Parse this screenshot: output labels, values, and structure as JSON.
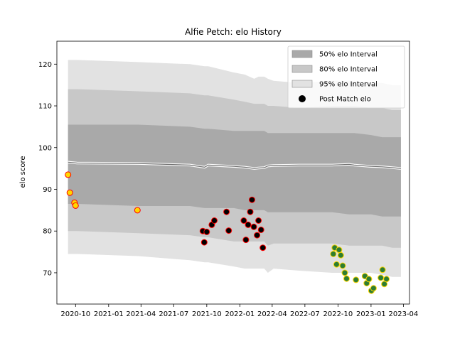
{
  "chart_data": {
    "type": "scatter",
    "title": "Alfie Petch: elo History",
    "xlabel": "",
    "ylabel": "elo score",
    "x_type": "date",
    "xlim": [
      "2020-08-10",
      "2023-04-18"
    ],
    "ylim": [
      62.5,
      125.5
    ],
    "x_ticks": [
      {
        "date": "2020-10-01",
        "label": "2020-10"
      },
      {
        "date": "2021-01-01",
        "label": "2021-01"
      },
      {
        "date": "2021-04-01",
        "label": "2021-04"
      },
      {
        "date": "2021-07-01",
        "label": "2021-07"
      },
      {
        "date": "2021-10-01",
        "label": "2021-10"
      },
      {
        "date": "2022-01-01",
        "label": "2022-01"
      },
      {
        "date": "2022-04-01",
        "label": "2022-04"
      },
      {
        "date": "2022-07-01",
        "label": "2022-07"
      },
      {
        "date": "2022-10-01",
        "label": "2022-10"
      },
      {
        "date": "2023-01-01",
        "label": "2023-01"
      },
      {
        "date": "2023-04-01",
        "label": "2023-04"
      }
    ],
    "y_ticks": [
      70,
      80,
      90,
      100,
      110,
      120
    ],
    "grid": false,
    "legend": {
      "position": "top-right",
      "entries": [
        {
          "label": "50% elo Interval",
          "color": "#a9a9a9",
          "kind": "patch"
        },
        {
          "label": "80% elo Interval",
          "color": "#c8c8c8",
          "kind": "patch"
        },
        {
          "label": "95% elo Interval",
          "color": "#e2e2e2",
          "kind": "patch"
        },
        {
          "label": "Post Match elo",
          "color": "#000000",
          "kind": "marker"
        }
      ]
    },
    "bands": {
      "dates": [
        "2020-09-10",
        "2020-10-05",
        "2021-03-25",
        "2021-08-15",
        "2021-09-25",
        "2021-10-05",
        "2021-12-15",
        "2022-01-15",
        "2022-02-10",
        "2022-02-22",
        "2022-03-10",
        "2022-03-20",
        "2022-04-05",
        "2022-06-15",
        "2022-09-15",
        "2022-11-01",
        "2022-11-15",
        "2023-01-01",
        "2023-02-01",
        "2023-03-01",
        "2023-03-25"
      ],
      "p95": [
        [
          74.5,
          121.0
        ],
        [
          74.5,
          121.0
        ],
        [
          74.0,
          120.5
        ],
        [
          73.0,
          120.0
        ],
        [
          72.5,
          119.5
        ],
        [
          72.5,
          119.5
        ],
        [
          71.5,
          118.0
        ],
        [
          71.0,
          117.5
        ],
        [
          71.0,
          116.5
        ],
        [
          71.0,
          117.0
        ],
        [
          71.0,
          117.0
        ],
        [
          70.0,
          116.5
        ],
        [
          71.0,
          116.0
        ],
        [
          70.5,
          115.5
        ],
        [
          70.0,
          116.0
        ],
        [
          70.0,
          116.0
        ],
        [
          70.0,
          116.0
        ],
        [
          70.0,
          115.5
        ],
        [
          69.5,
          115.5
        ],
        [
          69.0,
          115.0
        ],
        [
          69.0,
          115.0
        ]
      ],
      "p80": [
        [
          80.0,
          114.0
        ],
        [
          80.0,
          114.0
        ],
        [
          79.5,
          113.5
        ],
        [
          79.0,
          113.0
        ],
        [
          78.5,
          112.5
        ],
        [
          78.5,
          112.5
        ],
        [
          77.5,
          111.5
        ],
        [
          77.5,
          111.0
        ],
        [
          77.5,
          110.5
        ],
        [
          77.5,
          110.5
        ],
        [
          77.5,
          110.5
        ],
        [
          76.5,
          110.0
        ],
        [
          77.0,
          110.0
        ],
        [
          77.0,
          109.5
        ],
        [
          77.0,
          110.0
        ],
        [
          76.5,
          110.0
        ],
        [
          76.5,
          110.0
        ],
        [
          76.5,
          109.5
        ],
        [
          76.5,
          109.5
        ],
        [
          76.0,
          109.0
        ],
        [
          76.0,
          109.0
        ]
      ],
      "p50": [
        [
          86.5,
          105.5
        ],
        [
          86.5,
          105.5
        ],
        [
          86.0,
          105.5
        ],
        [
          86.0,
          105.0
        ],
        [
          85.5,
          104.5
        ],
        [
          85.5,
          104.5
        ],
        [
          85.5,
          104.0
        ],
        [
          85.0,
          104.0
        ],
        [
          85.0,
          104.0
        ],
        [
          85.0,
          104.0
        ],
        [
          85.0,
          104.0
        ],
        [
          84.5,
          103.5
        ],
        [
          84.5,
          103.5
        ],
        [
          84.5,
          103.5
        ],
        [
          84.5,
          103.5
        ],
        [
          84.0,
          103.5
        ],
        [
          84.0,
          103.5
        ],
        [
          84.0,
          103.0
        ],
        [
          83.5,
          102.5
        ],
        [
          83.5,
          102.5
        ],
        [
          83.5,
          102.5
        ]
      ],
      "mean": [
        96.5,
        96.3,
        96.2,
        95.8,
        95.3,
        95.8,
        95.5,
        95.3,
        95.0,
        95.1,
        95.2,
        95.6,
        95.7,
        95.8,
        95.8,
        96.0,
        95.8,
        95.5,
        95.4,
        95.2,
        95.0
      ]
    },
    "series": [
      {
        "marker_fill": "#ffd700",
        "marker_edge": "#ff0000",
        "points": [
          {
            "x": "2020-09-10",
            "y": 93.5
          },
          {
            "x": "2020-09-15",
            "y": 89.2
          },
          {
            "x": "2020-09-28",
            "y": 86.8
          },
          {
            "x": "2020-10-01",
            "y": 86.1
          },
          {
            "x": "2021-03-22",
            "y": 85.0
          }
        ]
      },
      {
        "marker_fill": "#000000",
        "marker_edge": "#ff0000",
        "points": [
          {
            "x": "2021-09-20",
            "y": 80.0
          },
          {
            "x": "2021-09-24",
            "y": 77.3
          },
          {
            "x": "2021-10-01",
            "y": 79.8
          },
          {
            "x": "2021-10-15",
            "y": 81.5
          },
          {
            "x": "2021-10-22",
            "y": 82.5
          },
          {
            "x": "2021-11-25",
            "y": 84.6
          },
          {
            "x": "2021-12-01",
            "y": 80.1
          },
          {
            "x": "2022-01-12",
            "y": 82.5
          },
          {
            "x": "2022-01-18",
            "y": 77.9
          },
          {
            "x": "2022-01-24",
            "y": 81.5
          },
          {
            "x": "2022-01-30",
            "y": 84.6
          },
          {
            "x": "2022-02-04",
            "y": 87.5
          },
          {
            "x": "2022-02-09",
            "y": 81.0
          },
          {
            "x": "2022-02-18",
            "y": 79.0
          },
          {
            "x": "2022-02-22",
            "y": 82.5
          },
          {
            "x": "2022-03-01",
            "y": 80.3
          },
          {
            "x": "2022-03-06",
            "y": 76.0
          }
        ]
      },
      {
        "marker_fill": "#2e7d32",
        "marker_edge": "#ffd700",
        "points": [
          {
            "x": "2022-09-18",
            "y": 74.5
          },
          {
            "x": "2022-09-22",
            "y": 76.0
          },
          {
            "x": "2022-09-27",
            "y": 72.0
          },
          {
            "x": "2022-10-04",
            "y": 75.5
          },
          {
            "x": "2022-10-09",
            "y": 74.2
          },
          {
            "x": "2022-10-14",
            "y": 71.7
          },
          {
            "x": "2022-10-20",
            "y": 70.0
          },
          {
            "x": "2022-10-25",
            "y": 68.6
          },
          {
            "x": "2022-11-20",
            "y": 68.3
          },
          {
            "x": "2022-12-15",
            "y": 69.2
          },
          {
            "x": "2022-12-20",
            "y": 67.5
          },
          {
            "x": "2022-12-26",
            "y": 68.5
          },
          {
            "x": "2023-01-02",
            "y": 65.7
          },
          {
            "x": "2023-01-08",
            "y": 66.3
          },
          {
            "x": "2023-01-28",
            "y": 68.8
          },
          {
            "x": "2023-02-02",
            "y": 70.7
          },
          {
            "x": "2023-02-07",
            "y": 67.3
          },
          {
            "x": "2023-02-13",
            "y": 68.5
          }
        ]
      }
    ]
  }
}
